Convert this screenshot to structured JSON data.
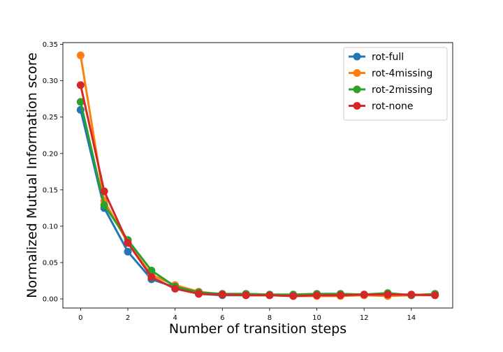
{
  "chart_data": {
    "type": "line",
    "title": "",
    "xlabel": "Number of transition steps",
    "ylabel": "Normalized Mutual Information score",
    "xlim": [
      -0.75,
      15.75
    ],
    "ylim": [
      -0.0125,
      0.3525
    ],
    "xticks": [
      0,
      2,
      4,
      6,
      8,
      10,
      12,
      14
    ],
    "xtick_labels": [
      "0",
      "2",
      "4",
      "6",
      "8",
      "10",
      "12",
      "14"
    ],
    "yticks": [
      0.0,
      0.05,
      0.1,
      0.15,
      0.2,
      0.25,
      0.3,
      0.35
    ],
    "ytick_labels": [
      "0.00",
      "0.05",
      "0.10",
      "0.15",
      "0.20",
      "0.25",
      "0.30",
      "0.35"
    ],
    "grid": false,
    "legend_position": "top-right",
    "x": [
      0,
      1,
      2,
      3,
      4,
      5,
      6,
      7,
      8,
      9,
      10,
      11,
      12,
      13,
      14,
      15
    ],
    "series": [
      {
        "name": "rot-full",
        "color": "#1f77b4",
        "values": [
          0.26,
          0.125,
          0.065,
          0.027,
          0.016,
          0.007,
          0.005,
          0.005,
          0.005,
          0.005,
          0.006,
          0.006,
          0.005,
          0.006,
          0.005,
          0.006
        ]
      },
      {
        "name": "rot-4missing",
        "color": "#ff7f0e",
        "values": [
          0.335,
          0.135,
          0.077,
          0.033,
          0.019,
          0.01,
          0.006,
          0.005,
          0.005,
          0.004,
          0.004,
          0.004,
          0.005,
          0.004,
          0.005,
          0.005
        ]
      },
      {
        "name": "rot-2missing",
        "color": "#2ca02c",
        "values": [
          0.271,
          0.129,
          0.081,
          0.039,
          0.017,
          0.009,
          0.007,
          0.007,
          0.006,
          0.006,
          0.007,
          0.007,
          0.006,
          0.008,
          0.005,
          0.007
        ]
      },
      {
        "name": "rot-none",
        "color": "#d62728",
        "values": [
          0.294,
          0.148,
          0.077,
          0.03,
          0.014,
          0.007,
          0.006,
          0.005,
          0.005,
          0.004,
          0.005,
          0.005,
          0.006,
          0.006,
          0.006,
          0.005
        ]
      }
    ]
  }
}
